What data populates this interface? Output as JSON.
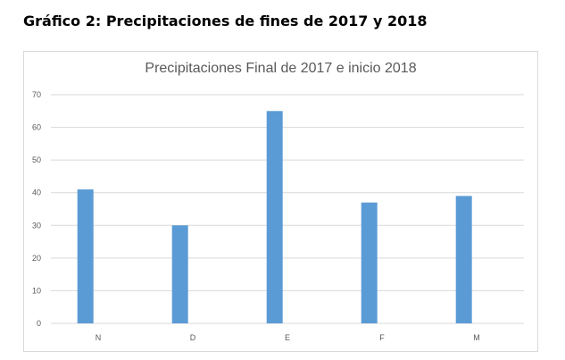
{
  "heading": "Gráfico 2: Precipitaciones de fines de 2017 y 2018",
  "chart_data": {
    "type": "bar",
    "title": "Precipitaciones Final de 2017 e inicio 2018",
    "categories": [
      "N",
      "D",
      "E",
      "F",
      "M"
    ],
    "values": [
      41,
      30,
      65,
      37,
      39
    ],
    "ylim": [
      0,
      70
    ],
    "yticks": [
      0,
      10,
      20,
      30,
      40,
      50,
      60,
      70
    ],
    "xlabel": "",
    "ylabel": "",
    "grid": true,
    "legend": "none",
    "bar_color": "#5b9bd5",
    "grid_color": "#d9d9d9"
  }
}
